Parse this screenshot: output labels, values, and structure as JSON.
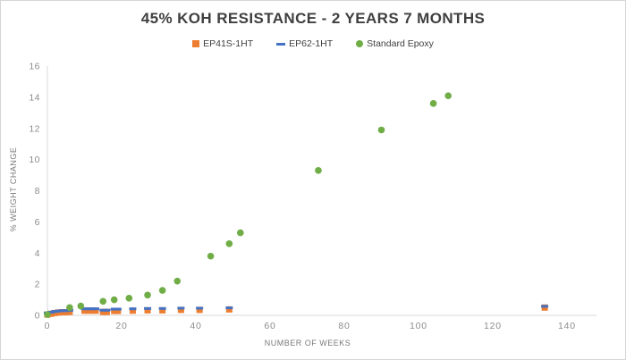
{
  "figure": {
    "background": "#ffffff",
    "border_color": "#d6d6d6"
  },
  "chart_data": {
    "type": "scatter",
    "title": "45% KOH RESISTANCE - 2 YEARS 7 MONTHS",
    "xlabel": "NUMBER OF WEEKS",
    "ylabel": "% WEIGHT CHANGE",
    "xlim": [
      0,
      148
    ],
    "ylim": [
      0,
      16
    ],
    "xticks": [
      0,
      20,
      40,
      60,
      80,
      100,
      120,
      140
    ],
    "yticks": [
      0,
      2,
      4,
      6,
      8,
      10,
      12,
      14,
      16
    ],
    "grid": false,
    "legend_position": "top-center",
    "axis_color": "#d9d9d9",
    "tick_label_color": "#8c8c8c",
    "title_color": "#3f3f3f",
    "axis_title_color": "#7a7a7a",
    "legend_text_color": "#404040",
    "series": [
      {
        "name": "EP41S-1HT",
        "marker": "square",
        "color": "#ED7D31",
        "points": [
          [
            0,
            0.05
          ],
          [
            1,
            0.1
          ],
          [
            2,
            0.15
          ],
          [
            3,
            0.18
          ],
          [
            4,
            0.2
          ],
          [
            5,
            0.2
          ],
          [
            6,
            0.22
          ],
          [
            10,
            0.3
          ],
          [
            11,
            0.3
          ],
          [
            12,
            0.3
          ],
          [
            13,
            0.3
          ],
          [
            15,
            0.22
          ],
          [
            16,
            0.22
          ],
          [
            18,
            0.28
          ],
          [
            19,
            0.28
          ],
          [
            23,
            0.3
          ],
          [
            27,
            0.32
          ],
          [
            31,
            0.32
          ],
          [
            36,
            0.35
          ],
          [
            41,
            0.35
          ],
          [
            49,
            0.38
          ],
          [
            134,
            0.5
          ]
        ]
      },
      {
        "name": "EP62-1HT",
        "marker": "dash",
        "color": "#4472C4",
        "points": [
          [
            0,
            0.15
          ],
          [
            1,
            0.2
          ],
          [
            2,
            0.25
          ],
          [
            3,
            0.28
          ],
          [
            4,
            0.3
          ],
          [
            5,
            0.3
          ],
          [
            6,
            0.32
          ],
          [
            10,
            0.42
          ],
          [
            11,
            0.42
          ],
          [
            12,
            0.42
          ],
          [
            13,
            0.42
          ],
          [
            15,
            0.33
          ],
          [
            16,
            0.33
          ],
          [
            18,
            0.4
          ],
          [
            19,
            0.4
          ],
          [
            23,
            0.42
          ],
          [
            27,
            0.44
          ],
          [
            31,
            0.44
          ],
          [
            36,
            0.46
          ],
          [
            41,
            0.46
          ],
          [
            49,
            0.48
          ],
          [
            134,
            0.58
          ]
        ]
      },
      {
        "name": "Standard Epoxy",
        "marker": "circle",
        "color": "#70AD47",
        "points": [
          [
            0,
            0.05
          ],
          [
            6,
            0.5
          ],
          [
            9,
            0.6
          ],
          [
            15,
            0.9
          ],
          [
            18,
            1.0
          ],
          [
            22,
            1.1
          ],
          [
            27,
            1.3
          ],
          [
            31,
            1.6
          ],
          [
            35,
            2.2
          ],
          [
            44,
            3.8
          ],
          [
            49,
            4.6
          ],
          [
            52,
            5.3
          ],
          [
            73,
            9.3
          ],
          [
            90,
            11.9
          ],
          [
            104,
            13.6
          ],
          [
            108,
            14.1
          ]
        ]
      }
    ]
  }
}
